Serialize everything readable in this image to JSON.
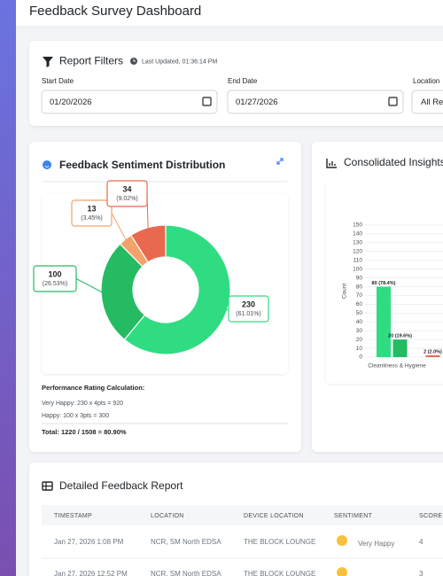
{
  "header": {
    "title": "Feedback Survey Dashboard"
  },
  "filters": {
    "title": "Report Filters",
    "last_updated": "Last Updated, 01:36:14 PM",
    "fields": [
      {
        "label": "Start Date",
        "value": "01/20/2026"
      },
      {
        "label": "End Date",
        "value": "01/27/2026"
      },
      {
        "label": "Location",
        "value": "All Re"
      }
    ]
  },
  "sentiment": {
    "title": "Feedback Sentiment Distribution",
    "chart_data": {
      "type": "donut",
      "values": [
        230,
        100,
        13,
        34
      ],
      "share_labels": [
        "(61.01%)",
        "(26.53%)",
        "(3.45%)",
        "(9.02%)"
      ],
      "colors": [
        "#2fdc82",
        "#25bb62",
        "#f3a26b",
        "#e8694f"
      ]
    },
    "calc_title": "Performance Rating Calculation:",
    "calc_lines": [
      "Very Happy: 230 x 4pts = 920",
      "Happy: 100 x 3pts = 300"
    ],
    "total": "Total: 1220 / 1508 = 80.90%"
  },
  "insights": {
    "title": "Consolidated Insights",
    "chart_data": {
      "type": "bar",
      "categories": [
        "Cleanliness & Hygiene"
      ],
      "series": [
        {
          "color": "#2fdc82",
          "values": [
            80
          ],
          "value_labels": [
            "80 (78.4%)"
          ]
        },
        {
          "color": "#25bb62",
          "values": [
            20
          ],
          "value_labels": [
            "20 (19.6%)"
          ]
        },
        {
          "color": "#f3a26b",
          "values": [
            0
          ]
        },
        {
          "color": "#e8694f",
          "values": [
            2
          ],
          "value_labels": [
            "2 (2.0%)"
          ]
        }
      ],
      "y_label": "Count",
      "ylim": [
        0,
        150
      ],
      "yticks": [
        0,
        10,
        20,
        30,
        40,
        50,
        60,
        70,
        80,
        90,
        100,
        110,
        120,
        130,
        140,
        150
      ],
      "grid": true
    }
  },
  "report": {
    "title": "Detailed Feedback Report",
    "columns": [
      "TIMESTAMP",
      "LOCATION",
      "DEVICE LOCATION",
      "SENTIMENT",
      "SCORE"
    ],
    "rows": [
      {
        "timestamp": "Jan 27, 2026 1:08 PM",
        "location": "NCR, SM North EDSA",
        "device": "THE BLOCK LOUNGE",
        "sentiment": "Very Happy",
        "score": 4
      },
      {
        "timestamp": "Jan 27, 2026 12:52 PM",
        "location": "NCR, SM North EDSA",
        "device": "THE BLOCK LOUNGE",
        "score": 3
      }
    ]
  }
}
